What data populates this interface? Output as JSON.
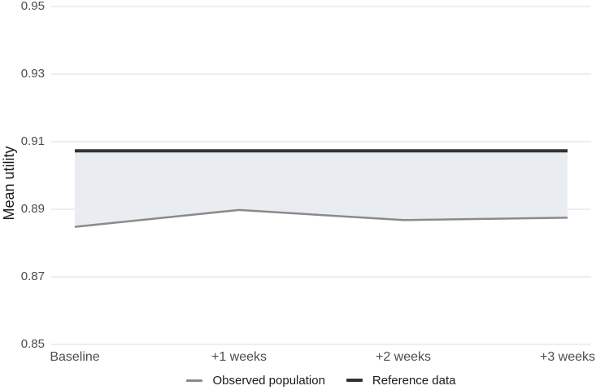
{
  "chart_data": {
    "type": "line",
    "title": "",
    "xlabel": "",
    "ylabel": "Mean utility",
    "categories": [
      "Baseline",
      "+1 weeks",
      "+2 weeks",
      "+3 weeks"
    ],
    "series": [
      {
        "name": "Observed population",
        "values": [
          0.8848,
          0.8898,
          0.8868,
          0.8875
        ],
        "color": "#8A8A8A"
      },
      {
        "name": "Reference data",
        "values": [
          0.9073,
          0.9073,
          0.9073,
          0.9073
        ],
        "color": "#333333"
      }
    ],
    "band": {
      "between_series": [
        "Observed population",
        "Reference data"
      ],
      "fill": "#E9EDF1"
    },
    "ylim": [
      0.85,
      0.95
    ],
    "yticks": [
      0.85,
      0.87,
      0.89,
      0.91,
      0.93,
      0.95
    ],
    "ytick_labels": [
      "0.85",
      "0.87",
      "0.89",
      "0.91",
      "0.93",
      "0.95"
    ],
    "grid": {
      "horizontal_major": true,
      "vertical": false,
      "minor": false
    },
    "legend_position": "bottom-center"
  },
  "colors": {
    "background": "#FFFFFF",
    "gridline": "#E8E8E8",
    "band_fill": "#E9EDF1",
    "observed_line": "#8A8A8A",
    "reference_line": "#333333",
    "tick_text": "#4D4D4D",
    "axis_title_text": "#1A1A1A",
    "legend_text": "#1A1A1A"
  }
}
